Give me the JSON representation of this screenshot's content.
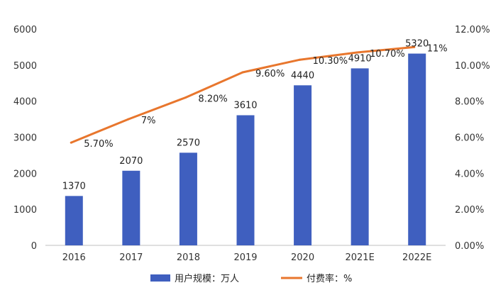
{
  "chart_data": {
    "type": "bar",
    "categories": [
      "2016",
      "2017",
      "2018",
      "2019",
      "2020",
      "2021E",
      "2022E"
    ],
    "series": [
      {
        "name": "用户规模：万人",
        "axis": "left",
        "type": "bar",
        "values": [
          1370,
          2070,
          2570,
          3610,
          4440,
          4910,
          5320
        ],
        "labels": [
          "1370",
          "2070",
          "2570",
          "3610",
          "4440",
          "4910",
          "5320"
        ],
        "color": "#3f5fbf"
      },
      {
        "name": "付费率：%",
        "axis": "right",
        "type": "line",
        "values": [
          5.7,
          7,
          8.2,
          9.6,
          10.3,
          10.7,
          11
        ],
        "labels": [
          "5.70%",
          "7%",
          "8.20%",
          "9.60%",
          "10.30%",
          "10.70%",
          "11%"
        ],
        "color": "#e8762d"
      }
    ],
    "ylim_left": [
      0,
      6000
    ],
    "yticks_left": [
      "0",
      "1000",
      "2000",
      "3000",
      "4000",
      "5000",
      "6000"
    ],
    "ylim_right": [
      0,
      12
    ],
    "yticks_right": [
      "0.00%",
      "2.00%",
      "4.00%",
      "6.00%",
      "8.00%",
      "10.00%",
      "12.00%"
    ],
    "grid": false,
    "legend_position": "bottom"
  }
}
